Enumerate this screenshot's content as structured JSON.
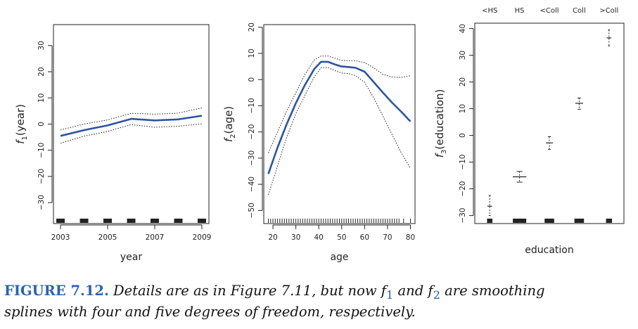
{
  "chart_data": [
    {
      "type": "line",
      "xlabel": "year",
      "ylabel": "f1(year)",
      "ylabel_base": "f",
      "ylabel_sub": "1",
      "ylabel_arg": "(year)",
      "xlim": [
        2002.7,
        2009.3
      ],
      "ylim": [
        -38,
        38
      ],
      "xticks": [
        2003,
        2005,
        2007,
        2009
      ],
      "xtick_labels": [
        "2003",
        "2005",
        "2007",
        "2009"
      ],
      "yticks": [
        -30,
        -20,
        -10,
        0,
        10,
        20,
        30
      ],
      "ytick_labels": [
        "−30",
        "−20",
        "−10",
        "0",
        "10",
        "20",
        "30"
      ],
      "x": [
        2003,
        2004,
        2005,
        2006,
        2007,
        2008,
        2009
      ],
      "fit": [
        -4.5,
        -2.3,
        -0.5,
        2.0,
        1.4,
        1.8,
        3.2
      ],
      "upper": [
        -2.2,
        0.0,
        1.6,
        4.1,
        3.8,
        4.2,
        6.2
      ],
      "lower": [
        -7.3,
        -4.6,
        -2.8,
        -0.2,
        -1.2,
        -0.8,
        0.1
      ],
      "rug": [
        2003,
        2004,
        2005,
        2006,
        2007,
        2008,
        2009
      ],
      "rug_style": "blocks"
    },
    {
      "type": "line",
      "xlabel": "age",
      "ylabel": "f2(age)",
      "ylabel_base": "f",
      "ylabel_sub": "2",
      "ylabel_arg": "(age)",
      "xlim": [
        16,
        82
      ],
      "ylim": [
        -55,
        21
      ],
      "xticks": [
        20,
        30,
        40,
        50,
        60,
        70,
        80
      ],
      "xtick_labels": [
        "20",
        "30",
        "40",
        "50",
        "60",
        "70",
        "80"
      ],
      "yticks": [
        -50,
        -40,
        -30,
        -20,
        -10,
        0,
        10,
        20
      ],
      "ytick_labels": [
        "−50",
        "−40",
        "−30",
        "−20",
        "−10",
        "0",
        "10",
        "20"
      ],
      "x": [
        18,
        22,
        26,
        30,
        34,
        38,
        41,
        44,
        47,
        50,
        53,
        56,
        60,
        64,
        68,
        72,
        76,
        80
      ],
      "fit": [
        -36,
        -26,
        -17,
        -9,
        -2,
        4,
        6.8,
        6.8,
        5.8,
        5.0,
        4.8,
        4.5,
        3.0,
        -1.0,
        -5.0,
        -8.8,
        -12.3,
        -16
      ],
      "upper": [
        -28,
        -20,
        -12,
        -5,
        2,
        7.5,
        9.0,
        9.0,
        8.2,
        7.3,
        7.2,
        7.2,
        6.5,
        4.5,
        2.0,
        1.0,
        0.8,
        1.5
      ],
      "lower": [
        -44,
        -33,
        -22,
        -13,
        -6,
        1.0,
        4.5,
        4.6,
        3.4,
        2.5,
        2.3,
        1.5,
        -1.0,
        -7.0,
        -14,
        -21,
        -28,
        -34
      ],
      "rug": [
        18,
        19,
        20,
        21,
        22,
        23,
        24,
        25,
        26,
        27,
        28,
        29,
        30,
        31,
        32,
        33,
        34,
        35,
        36,
        37,
        38,
        39,
        40,
        41,
        42,
        43,
        44,
        45,
        46,
        47,
        48,
        49,
        50,
        51,
        52,
        53,
        54,
        55,
        56,
        57,
        58,
        59,
        60,
        61,
        62,
        63,
        64,
        65,
        66,
        67,
        68,
        69,
        70,
        71,
        72,
        73,
        74,
        75,
        77,
        80
      ],
      "rug_style": "lines"
    },
    {
      "type": "boxplot",
      "xlabel": "education",
      "ylabel": "f3(education)",
      "ylabel_base": "f",
      "ylabel_sub": "3",
      "ylabel_arg": "(education)",
      "ylim": [
        -33,
        42
      ],
      "yticks": [
        -30,
        -20,
        -10,
        0,
        10,
        20,
        30,
        40
      ],
      "ytick_labels": [
        "−30",
        "−20",
        "−10",
        "0",
        "10",
        "20",
        "30",
        "40"
      ],
      "categories": [
        "<HS",
        "HS",
        "<Coll",
        "Coll",
        ">Coll"
      ],
      "estimates": [
        -26.5,
        -15.5,
        -2.8,
        12.0,
        36.5
      ],
      "upper": [
        -22.5,
        -13.5,
        -0.5,
        14.0,
        39.5
      ],
      "lower": [
        -30.0,
        -17.5,
        -5.2,
        9.8,
        33.5
      ],
      "cap_widths": [
        0.12,
        0.35,
        0.18,
        0.2,
        0.12
      ],
      "rug_widths": [
        0.18,
        0.45,
        0.32,
        0.32,
        0.2
      ]
    }
  ],
  "caption": {
    "label": "FIGURE 7.12.",
    "line1_text": " Details are as in Figure 7.11, but now ",
    "f1_sub": "1",
    "and": " and ",
    "f2_sub": "2",
    "rest": " are smoothing",
    "line2": "splines with four and five degrees of freedom, respectively.",
    "f_glyph": "f"
  },
  "colors": {
    "fit": "#2c55a0",
    "axis": "#222222",
    "caption_label": "#2a62b0"
  }
}
